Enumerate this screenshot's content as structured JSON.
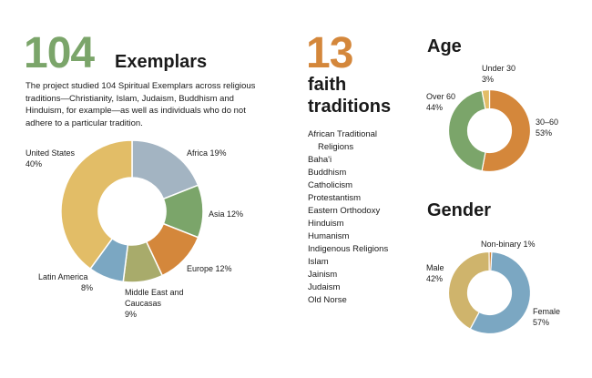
{
  "exemplars": {
    "number": "104",
    "word": "Exemplars",
    "description": "The project studied 104 Spiritual Exemplars across religious traditions—Christianity, Islam, Judaism, Buddhism and Hinduism, for example—as well as individuals who do not adhere to a particular tradition.",
    "number_color": "#7ba56a"
  },
  "faith": {
    "number": "13",
    "title_line1": "faith",
    "title_line2": "traditions",
    "number_color": "#d4873b",
    "traditions": [
      "African Traditional Religions",
      "Baha'i",
      "Buddhism",
      "Catholicism",
      "Protestantism",
      "Eastern Orthodoxy",
      "Hinduism",
      "Humanism",
      "Indigenous Religions",
      "Islam",
      "Jainism",
      "Judaism",
      "Old Norse"
    ]
  },
  "chart_data": [
    {
      "type": "pie",
      "title": "",
      "donut": true,
      "categories": [
        "Africa",
        "Asia",
        "Europe",
        "Middle East and Caucasas",
        "Latin America",
        "United States"
      ],
      "values": [
        19,
        12,
        12,
        9,
        8,
        40
      ],
      "value_labels": [
        "19%",
        "12%",
        "12%",
        "9%",
        "8%",
        "40%"
      ],
      "colors": [
        "#a3b4c2",
        "#7ba56a",
        "#d4873b",
        "#a8ab6b",
        "#7ba7c2",
        "#e2bd67"
      ]
    },
    {
      "type": "pie",
      "title": "Age",
      "donut": true,
      "categories": [
        "30–60",
        "Over 60",
        "Under 30"
      ],
      "values": [
        53,
        44,
        3
      ],
      "value_labels": [
        "53%",
        "44%",
        "3%"
      ],
      "colors": [
        "#d4873b",
        "#7ba56a",
        "#e2bd67"
      ]
    },
    {
      "type": "pie",
      "title": "Gender",
      "donut": true,
      "categories": [
        "Female",
        "Male",
        "Non-binary"
      ],
      "values": [
        57,
        42,
        1
      ],
      "value_labels": [
        "57%",
        "42%",
        "1%"
      ],
      "colors": [
        "#7ba7c2",
        "#cfb46c",
        "#d4873b"
      ]
    }
  ]
}
